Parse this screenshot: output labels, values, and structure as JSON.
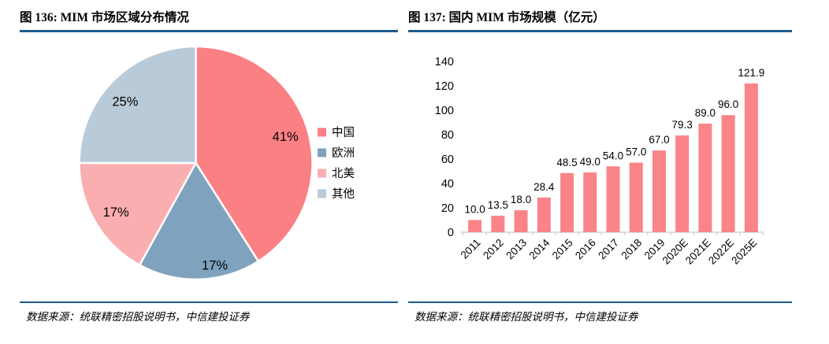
{
  "accent_color": "#1E5C8E",
  "left_figure": {
    "title": "图 136: MIM 市场区域分布情况",
    "source": "数据来源：统联精密招股说明书，中信建投证券"
  },
  "right_figure": {
    "title": "图 137: 国内 MIM 市场规模（亿元）",
    "source": "数据来源：统联精密招股说明书，中信建投证券"
  },
  "chart_data": [
    {
      "type": "pie",
      "title": "MIM 市场区域分布情况",
      "legend_position": "right",
      "slices": [
        {
          "label": "中国",
          "value": 41,
          "display": "41%",
          "color": "#FB8083"
        },
        {
          "label": "欧洲",
          "value": 17,
          "display": "17%",
          "color": "#7FA3BE"
        },
        {
          "label": "北美",
          "value": 17,
          "display": "17%",
          "color": "#FBAEB0"
        },
        {
          "label": "其他",
          "value": 25,
          "display": "25%",
          "color": "#B9CAD8"
        }
      ]
    },
    {
      "type": "bar",
      "title": "国内 MIM 市场规模（亿元）",
      "unit": "亿元",
      "categories": [
        "2011",
        "2012",
        "2013",
        "2014",
        "2015",
        "2016",
        "2017",
        "2018",
        "2019",
        "2020E",
        "2021E",
        "2022E",
        "2025E"
      ],
      "values": [
        10.0,
        13.5,
        18.0,
        28.4,
        48.5,
        49.0,
        54.0,
        57.0,
        67.0,
        79.3,
        89.0,
        96.0,
        121.9
      ],
      "value_labels": [
        "10.0",
        "13.5",
        "18.0",
        "28.4",
        "48.5",
        "49.0",
        "54.0",
        "57.0",
        "67.0",
        "79.3",
        "89.0",
        "96.0",
        "121.9"
      ],
      "ytick_labels": [
        "0",
        "20",
        "40",
        "60",
        "80",
        "100",
        "120",
        "140"
      ],
      "ylim": [
        0,
        140
      ],
      "ytick_step": 20,
      "grid": false,
      "legend_position": "none",
      "bar_color": "#FA8487",
      "axis_color": "#D3D3D3"
    }
  ]
}
